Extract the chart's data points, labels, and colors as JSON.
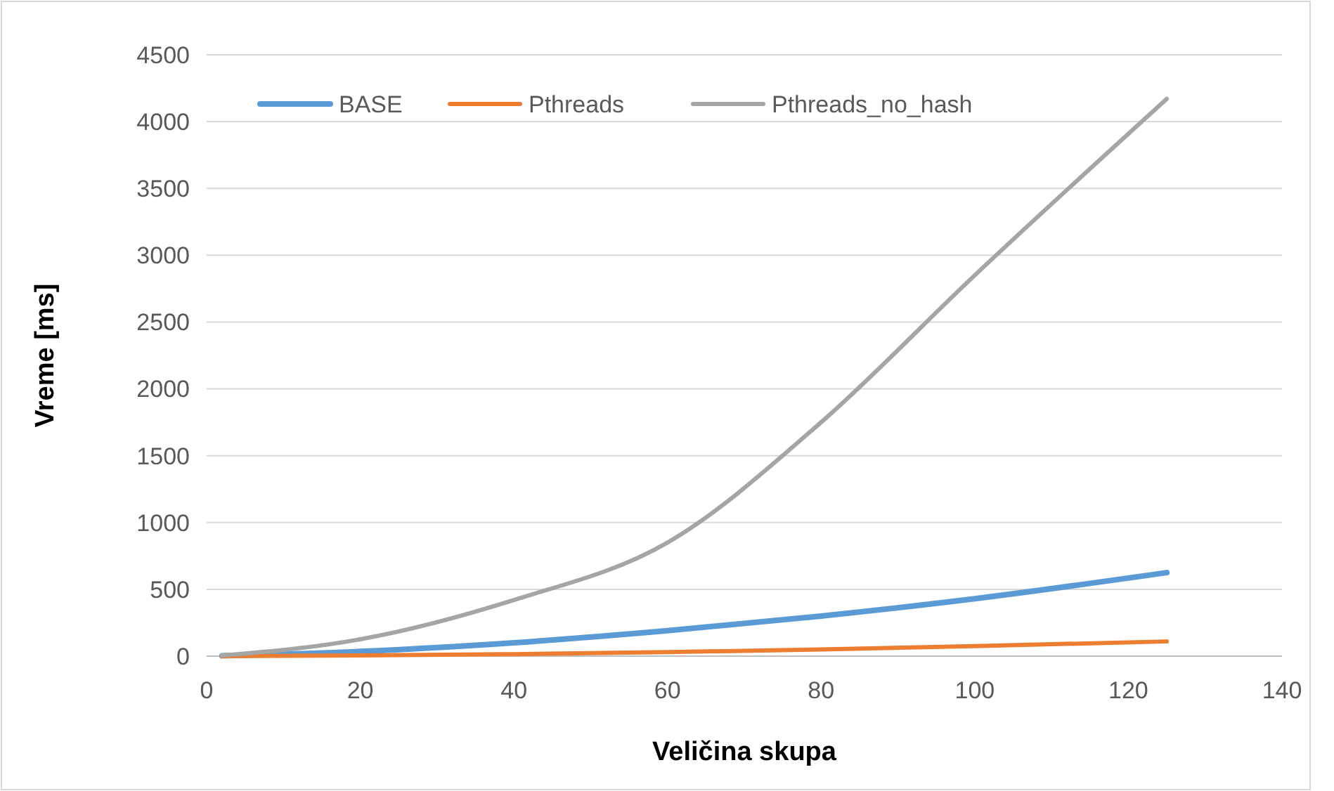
{
  "chart_data": {
    "type": "line",
    "xlabel": "Veličina skupa",
    "ylabel": "Vreme [ms]",
    "xlim": [
      0,
      140
    ],
    "xticks": [
      0,
      20,
      40,
      60,
      80,
      100,
      120,
      140
    ],
    "ylim": [
      0,
      4500
    ],
    "yticks": [
      0,
      500,
      1000,
      1500,
      2000,
      2500,
      3000,
      3500,
      4000,
      4500
    ],
    "grid": "y",
    "legend": "top",
    "marker": "none",
    "line_style": "solid",
    "series": [
      {
        "name": "BASE",
        "color": "#5b9bd5",
        "x": [
          2,
          20,
          40,
          60,
          80,
          100,
          125
        ],
        "values": [
          2,
          35,
          100,
          190,
          300,
          430,
          625
        ]
      },
      {
        "name": "Pthreads",
        "color": "#ed7d31",
        "x": [
          2,
          20,
          40,
          60,
          80,
          100,
          125
        ],
        "values": [
          0,
          5,
          15,
          30,
          50,
          75,
          110
        ]
      },
      {
        "name": "Pthreads_no_hash",
        "color": "#a5a5a5",
        "x": [
          2,
          20,
          40,
          60,
          80,
          100,
          125
        ],
        "values": [
          5,
          126,
          420,
          850,
          1750,
          2850,
          4170
        ]
      }
    ]
  }
}
